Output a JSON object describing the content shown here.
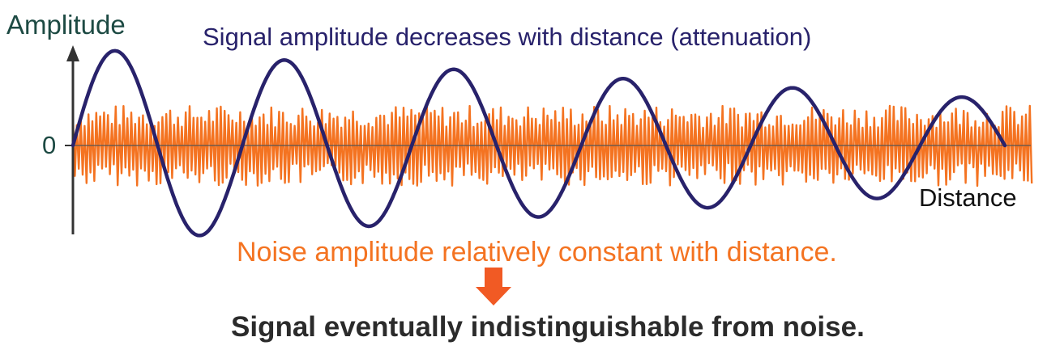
{
  "labels": {
    "y_axis": "Amplitude",
    "zero": "0",
    "x_axis": "Distance",
    "title": "Signal amplitude decreases with distance (attenuation)",
    "noise_caption": "Noise amplitude relatively constant with distance.",
    "conclusion": "Signal eventually indistinguishable from noise."
  },
  "series": {
    "signal": {
      "form": "sine",
      "cycles": 5.5,
      "amplitude_trend": "decreasing"
    },
    "noise": {
      "form": "random oscillation",
      "amplitude_trend": "constant"
    }
  },
  "colors": {
    "signal": "#28226b",
    "noise": "#f47321",
    "axis": "#333333",
    "axis_label": "#1d4a43",
    "title": "#28226b",
    "noise_caption": "#f47321",
    "arrow": "#f15a24",
    "conclusion": "#2b2b2b",
    "x_label": "#111111"
  },
  "icons": {
    "down_arrow": "down-arrow-icon",
    "axis_arrow": "up-arrow-icon"
  }
}
